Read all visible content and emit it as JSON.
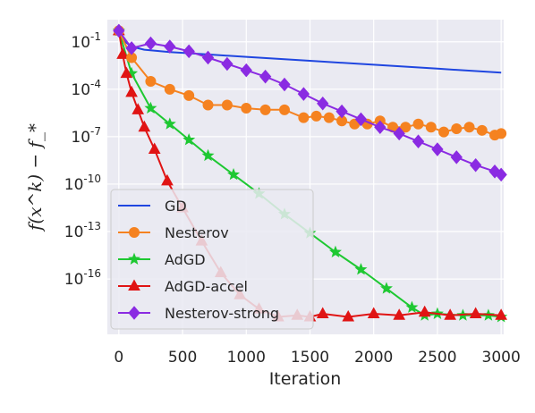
{
  "chart_data": {
    "type": "line",
    "xlabel": "Iteration",
    "ylabel": "f(x^k) − f_*",
    "y_scale": "log",
    "xlim": [
      -90,
      3020
    ],
    "ylim_log10": [
      -19.5,
      0.4
    ],
    "x_ticks": [
      {
        "value": 0,
        "label": "0"
      },
      {
        "value": 500,
        "label": "500"
      },
      {
        "value": 1000,
        "label": "1000"
      },
      {
        "value": 1500,
        "label": "1500"
      },
      {
        "value": 2000,
        "label": "2000"
      },
      {
        "value": 2500,
        "label": "2500"
      },
      {
        "value": 3000,
        "label": "3000"
      }
    ],
    "y_ticks": [
      {
        "log10": -1,
        "base": "10",
        "exp": "-1"
      },
      {
        "log10": -4,
        "base": "10",
        "exp": "-4"
      },
      {
        "log10": -7,
        "base": "10",
        "exp": "-7"
      },
      {
        "log10": -10,
        "base": "10",
        "exp": "-10"
      },
      {
        "log10": -13,
        "base": "10",
        "exp": "-13"
      },
      {
        "log10": -16,
        "base": "10",
        "exp": "-16"
      }
    ],
    "grid": true,
    "legend_position": "lower-left",
    "series": [
      {
        "name": "GD",
        "color": "#1f46e0",
        "marker": "none",
        "x": [
          0,
          50,
          100,
          200,
          400,
          700,
          1000,
          1500,
          2000,
          2500,
          3000
        ],
        "log10_y": [
          -0.3,
          -1.0,
          -1.3,
          -1.5,
          -1.65,
          -1.8,
          -1.95,
          -2.2,
          -2.45,
          -2.7,
          -2.95
        ]
      },
      {
        "name": "Nesterov",
        "color": "#f58220",
        "marker": "circle",
        "x": [
          0,
          100,
          250,
          400,
          550,
          700,
          850,
          1000,
          1150,
          1300,
          1450,
          1550,
          1650,
          1750,
          1850,
          1950,
          2050,
          2150,
          2250,
          2350,
          2450,
          2550,
          2650,
          2750,
          2850,
          2950,
          3000
        ],
        "log10_y": [
          -0.3,
          -2.0,
          -3.5,
          -4.0,
          -4.4,
          -5.0,
          -5.0,
          -5.2,
          -5.3,
          -5.3,
          -5.8,
          -5.7,
          -5.8,
          -6.0,
          -6.2,
          -6.2,
          -6.0,
          -6.4,
          -6.4,
          -6.2,
          -6.4,
          -6.7,
          -6.5,
          -6.4,
          -6.6,
          -6.9,
          -6.8
        ]
      },
      {
        "name": "AdGD",
        "color": "#1ec832",
        "marker": "star",
        "x": [
          0,
          100,
          250,
          400,
          550,
          700,
          900,
          1100,
          1300,
          1500,
          1700,
          1900,
          2100,
          2300,
          2400,
          2500,
          2700,
          2900,
          3000
        ],
        "log10_y": [
          -0.3,
          -3.0,
          -5.2,
          -6.2,
          -7.2,
          -8.2,
          -9.4,
          -10.6,
          -11.9,
          -13.1,
          -14.3,
          -15.4,
          -16.6,
          -17.8,
          -18.3,
          -18.2,
          -18.3,
          -18.3,
          -18.4
        ]
      },
      {
        "name": "AdGD-accel",
        "color": "#e01414",
        "marker": "triangle",
        "x": [
          0,
          30,
          60,
          100,
          150,
          200,
          280,
          380,
          500,
          650,
          800,
          950,
          1100,
          1250,
          1400,
          1500,
          1600,
          1800,
          2000,
          2200,
          2400,
          2600,
          2800,
          3000
        ],
        "log10_y": [
          -0.3,
          -1.8,
          -3.0,
          -4.2,
          -5.3,
          -6.4,
          -7.8,
          -9.8,
          -11.5,
          -13.6,
          -15.6,
          -17.0,
          -17.9,
          -18.4,
          -18.3,
          -18.4,
          -18.2,
          -18.4,
          -18.2,
          -18.3,
          -18.1,
          -18.3,
          -18.2,
          -18.3
        ]
      },
      {
        "name": "Nesterov-strong",
        "color": "#8a2be2",
        "marker": "diamond",
        "x": [
          0,
          100,
          250,
          400,
          550,
          700,
          850,
          1000,
          1150,
          1300,
          1450,
          1600,
          1750,
          1900,
          2050,
          2200,
          2350,
          2500,
          2650,
          2800,
          2950,
          3000
        ],
        "log10_y": [
          -0.3,
          -1.4,
          -1.1,
          -1.3,
          -1.6,
          -2.0,
          -2.4,
          -2.8,
          -3.2,
          -3.7,
          -4.3,
          -4.9,
          -5.4,
          -5.9,
          -6.4,
          -6.8,
          -7.3,
          -7.8,
          -8.3,
          -8.8,
          -9.2,
          -9.4
        ]
      }
    ]
  }
}
